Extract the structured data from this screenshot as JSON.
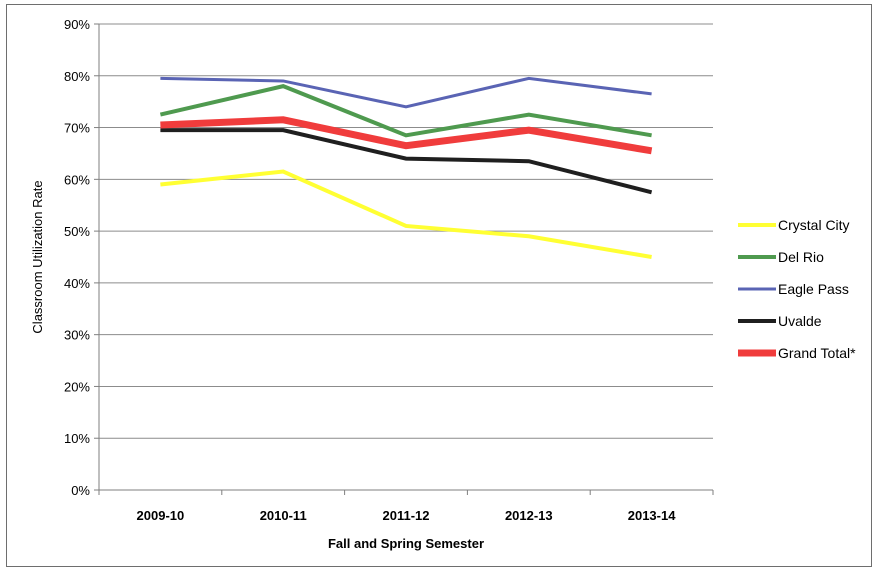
{
  "chart_data": {
    "type": "line",
    "title": "",
    "xlabel": "Fall and Spring Semester",
    "ylabel": "Classroom Utilization Rate",
    "categories": [
      "2009-10",
      "2010-11",
      "2011-12",
      "2012-13",
      "2013-14"
    ],
    "ylim": [
      0,
      90
    ],
    "y_ticks": [
      "0%",
      "10%",
      "20%",
      "30%",
      "40%",
      "50%",
      "60%",
      "70%",
      "80%",
      "90%"
    ],
    "y_unit": "%",
    "grid": "horizontal",
    "legend_position": "right",
    "series": [
      {
        "name": "Crystal City",
        "color": "#ffff33",
        "values": [
          59,
          61.5,
          51,
          49,
          45
        ]
      },
      {
        "name": "Del Rio",
        "color": "#4f9a4f",
        "values": [
          72.5,
          78,
          68.5,
          72.5,
          68.5
        ]
      },
      {
        "name": "Eagle Pass",
        "color": "#5a64b4",
        "values": [
          79.5,
          79,
          74,
          79.5,
          76.5
        ]
      },
      {
        "name": "Uvalde",
        "color": "#1f1f1f",
        "values": [
          69.5,
          69.5,
          64,
          63.5,
          57.5
        ]
      },
      {
        "name": "Grand Total*",
        "color": "#f03c3c",
        "values": [
          70.5,
          71.5,
          66.5,
          69.5,
          65.5
        ]
      }
    ]
  }
}
